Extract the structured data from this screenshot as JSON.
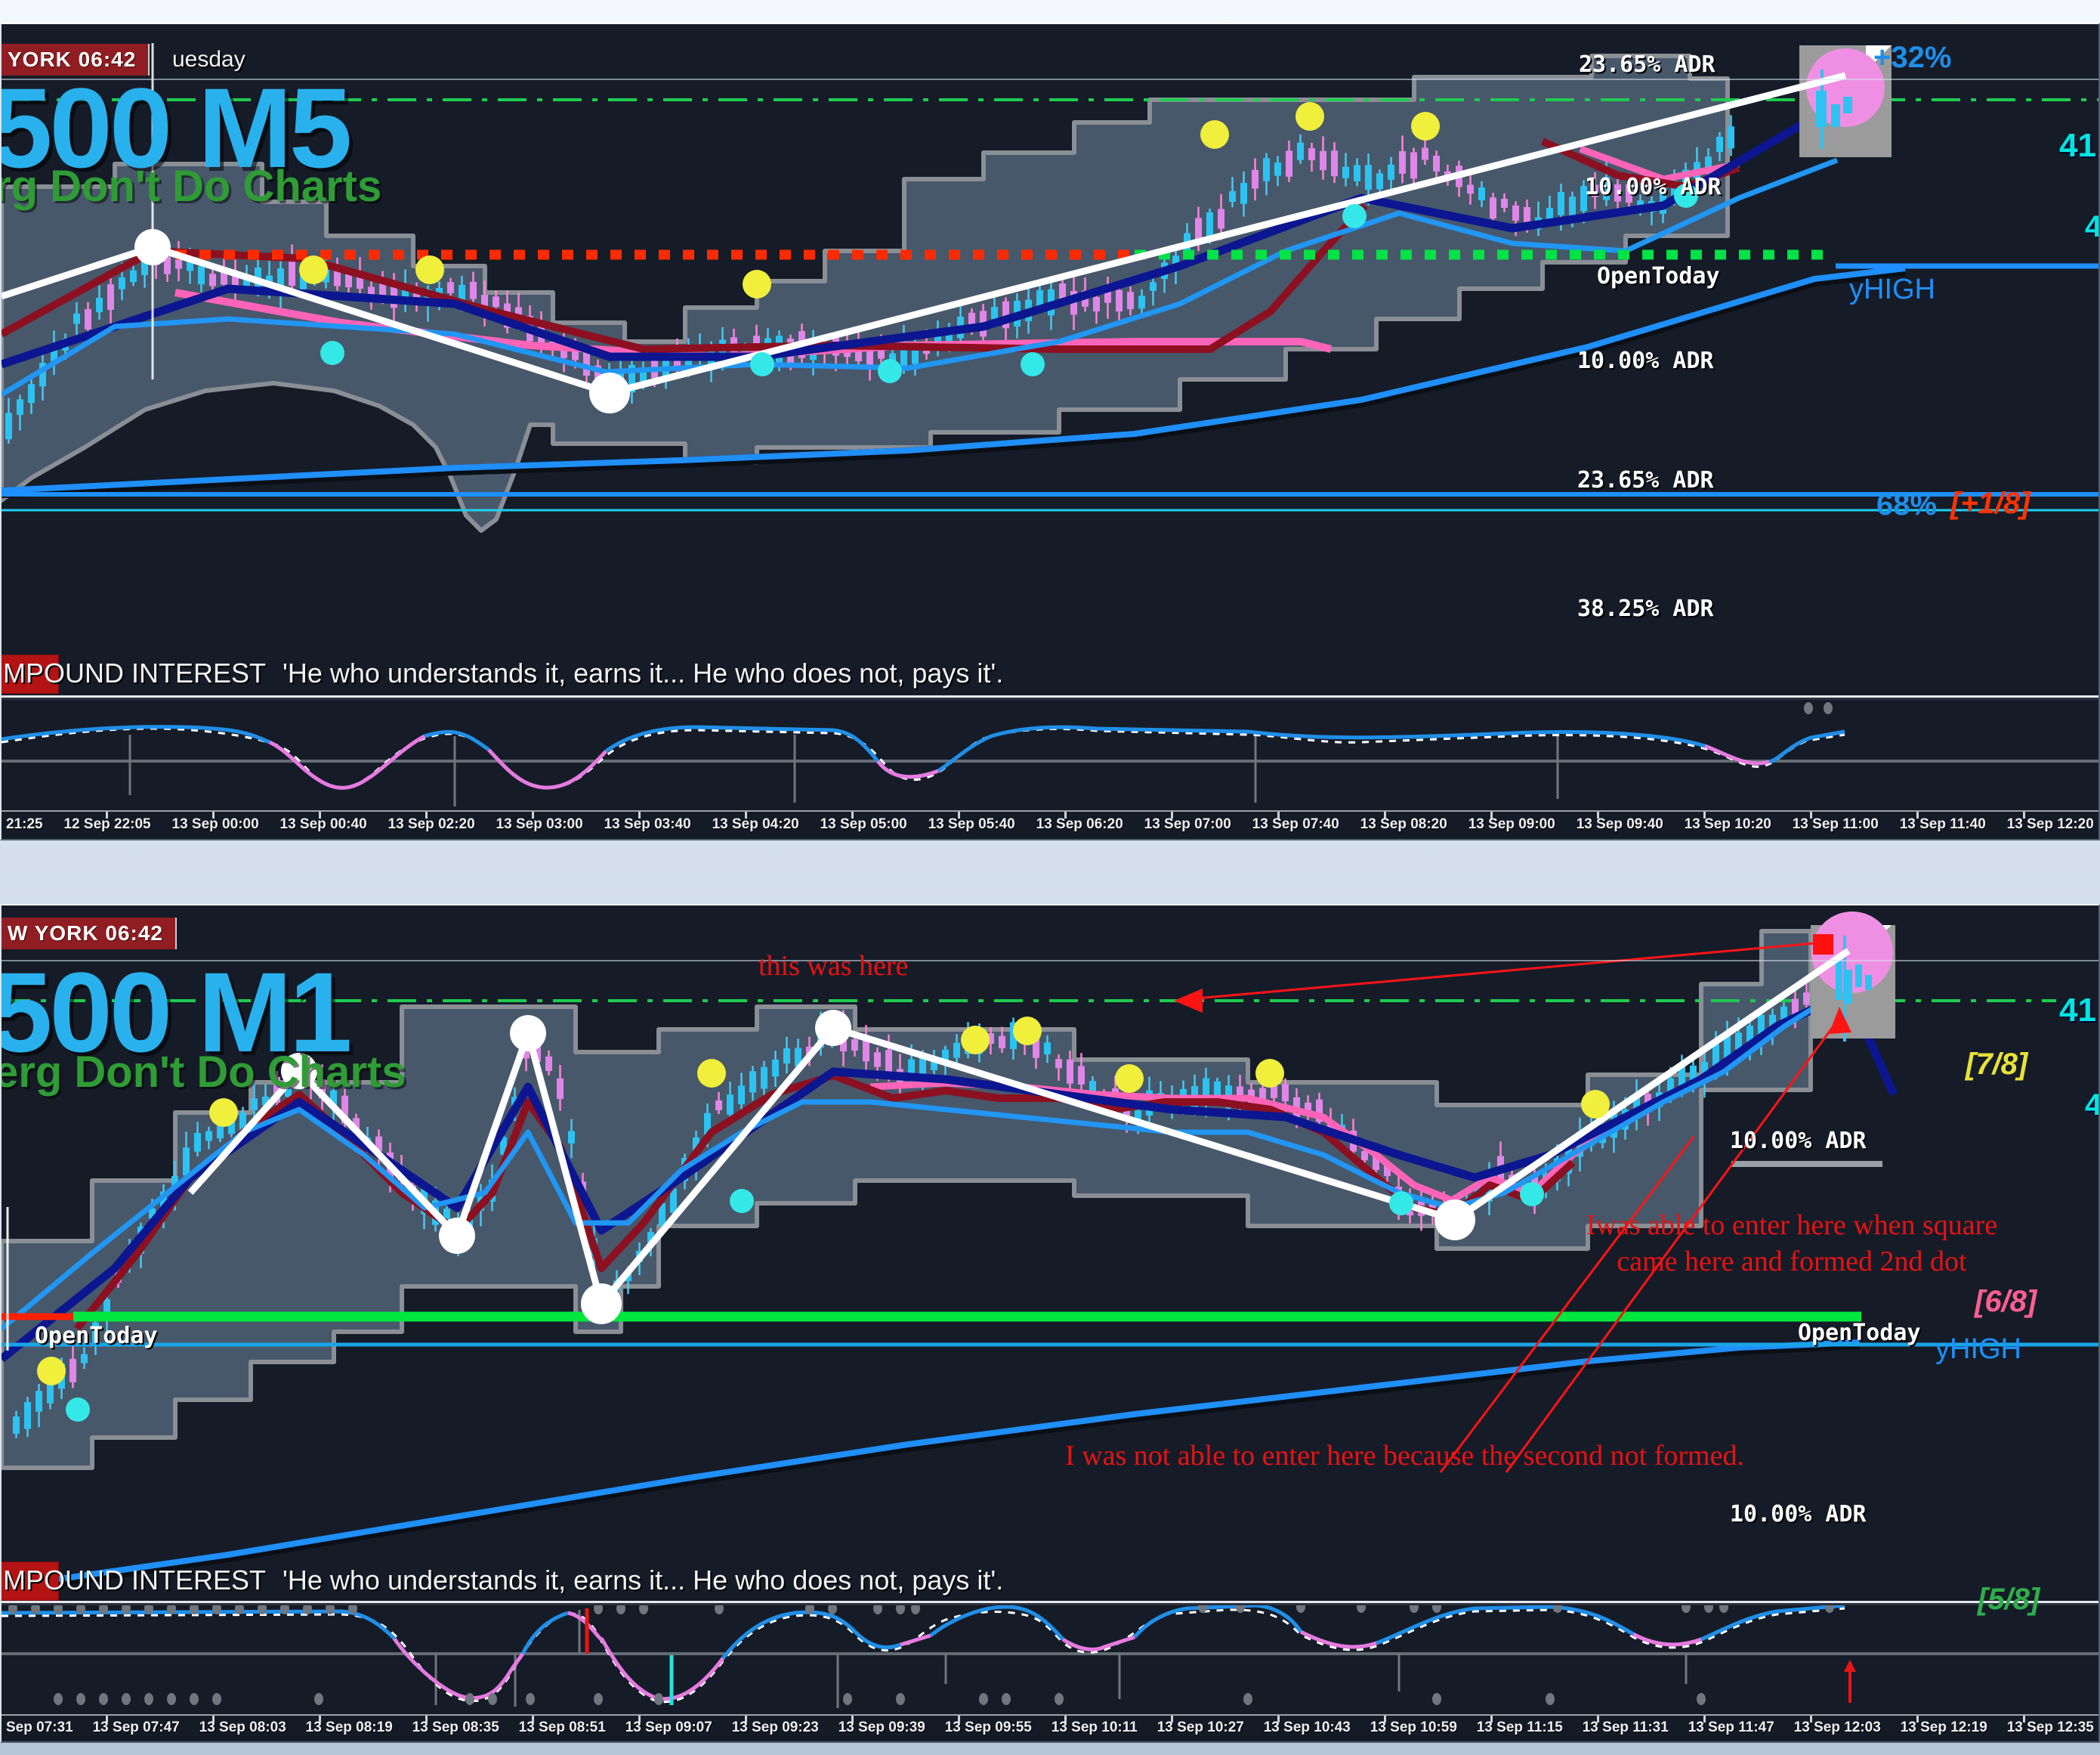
{
  "meta": {
    "app": "MetaTrader-style dual chart workspace",
    "colors": {
      "panel_bg": "#151c28",
      "channel_fill": "#47586b",
      "channel_stroke": "#8a8f95",
      "bull_candle": "#2cc3f2",
      "bear_candle": "#df86e8",
      "accent_blue": "#1e90ff",
      "price_cyan": "#00e5e0",
      "green_dashdot": "#1ecb4f",
      "red_dotted": "#ff2b00",
      "green_dotted": "#00e346",
      "annotation_red": "#e81212",
      "dot_yellow": "#f0ef3c",
      "dot_white": "#ffffff",
      "dot_cyan": "#35e8e8",
      "dot_magenta": "#ef8fe3",
      "badge_red": "#8f1d22",
      "symbol_blue": "#29b1ed",
      "watermark_green": "#2f9c35"
    }
  },
  "quote": {
    "prefix": "MPOUND INTEREST",
    "text": "'He who understands it, earns it... He who does not, pays it'."
  },
  "top_chart": {
    "badge": "YORK 06:42",
    "day": "uesday",
    "symbol": "500 M5",
    "watermark": "rg Don't Do Charts",
    "labels": {
      "adr_2365_upper": "23.65% ADR",
      "plus32": "+32%",
      "price_main": "41",
      "price_sub": "4",
      "adr_10_upper": "10.00% ADR",
      "open_today": "OpenToday",
      "yhigh": "yHIGH",
      "adr_10_lower": "10.00% ADR",
      "adr_2365_lower": "23.65% ADR",
      "pct68": "68%",
      "plus_eighth": "[+1/8]",
      "adr_3825": "38.25% ADR"
    },
    "time_axis": [
      "21:25",
      "12 Sep 22:05",
      "13 Sep 00:00",
      "13 Sep 00:40",
      "13 Sep 02:20",
      "13 Sep 03:00",
      "13 Sep 03:40",
      "13 Sep 04:20",
      "13 Sep 05:00",
      "13 Sep 05:40",
      "13 Sep 06:20",
      "13 Sep 07:00",
      "13 Sep 07:40",
      "13 Sep 08:20",
      "13 Sep 09:00",
      "13 Sep 09:40",
      "13 Sep 10:20",
      "13 Sep 11:00",
      "13 Sep 11:40",
      "13 Sep 12:20"
    ]
  },
  "bottom_chart": {
    "badge": "W YORK 06:42",
    "symbol": "500 M1",
    "watermark": "erg Don't Do Charts",
    "labels": {
      "price_main": "41",
      "price_sub": "4",
      "seventh": "[7/8]",
      "adr_10_upper": "10.00% ADR",
      "sixth": "[6/8]",
      "open_today_left": "OpenToday",
      "open_today_right": "OpenToday",
      "yhigh": "yHIGH",
      "adr_10_lower": "10.00% ADR",
      "fifth": "[5/8]"
    },
    "annotations": {
      "this_was_here": "this was here",
      "entered_line1": "Iwas able to enter here when square",
      "entered_line2": "came here and formed 2nd dot",
      "not_entered": "I was not able to enter here because the second not formed."
    },
    "time_axis": [
      "Sep 07:31",
      "13 Sep 07:47",
      "13 Sep 08:03",
      "13 Sep 08:19",
      "13 Sep 08:35",
      "13 Sep 08:51",
      "13 Sep 09:07",
      "13 Sep 09:23",
      "13 Sep 09:39",
      "13 Sep 09:55",
      "13 Sep 10:11",
      "13 Sep 10:27",
      "13 Sep 10:43",
      "13 Sep 10:59",
      "13 Sep 11:15",
      "13 Sep 11:31",
      "13 Sep 11:47",
      "13 Sep 12:03",
      "13 Sep 12:19",
      "13 Sep 12:35"
    ]
  },
  "chart_data": [
    {
      "type": "candlestick",
      "title": "500 M5",
      "timeframe": "M5",
      "session_clock": "YORK 06:42 uesday",
      "x_range": [
        "12 Sep 21:25",
        "13 Sep 12:20"
      ],
      "x_tick_labels": [
        "21:25",
        "12 Sep 22:05",
        "13 Sep 00:00",
        "13 Sep 00:40",
        "13 Sep 02:20",
        "13 Sep 03:00",
        "13 Sep 03:40",
        "13 Sep 04:20",
        "13 Sep 05:00",
        "13 Sep 05:40",
        "13 Sep 06:20",
        "13 Sep 07:00",
        "13 Sep 07:40",
        "13 Sep 08:20",
        "13 Sep 09:00",
        "13 Sep 09:40",
        "13 Sep 10:20",
        "13 Sep 11:00",
        "13 Sep 11:40",
        "13 Sep 12:20"
      ],
      "visible_price_axis_labels": [
        "41",
        "4"
      ],
      "levels": [
        {
          "label": "23.65% ADR",
          "zone": "above price, top of pane"
        },
        {
          "label": "10.00% ADR",
          "zone": "upper"
        },
        {
          "label": "OpenToday",
          "style": "dotted horizontal, red left segment then green",
          "note": "ends where blue yHIGH line begins"
        },
        {
          "label": "yHIGH",
          "style": "solid blue horizontal at right"
        },
        {
          "label": "10.00% ADR",
          "zone": "mid"
        },
        {
          "label": "23.65% ADR",
          "zone": "lower"
        },
        {
          "label": "68% [+1/8]",
          "style": "blue + cyan horizontal pair near pane bottom"
        },
        {
          "label": "38.25% ADR",
          "zone": "bottom"
        }
      ],
      "overlays": [
        "grey stepped channel band",
        "dark-blue MA",
        "dark-red MA",
        "pink MA",
        "fast blue MA",
        "slow blue MA with black outline",
        "white zigzag trend line",
        "green dash-dot top level"
      ],
      "markers": {
        "white_swing_dots": 2,
        "yellow_dots": 6,
        "cyan_dots": 6,
        "magenta_top_dot": 1,
        "gain_label": "+32%"
      },
      "lower_pane": "oscillator with blue line, white dashed companion, magenta below-midline segments, grey spikes"
    },
    {
      "type": "candlestick",
      "title": "500 M1",
      "timeframe": "M1",
      "session_clock": "W YORK 06:42",
      "x_range": [
        "13 Sep 07:31",
        "13 Sep 12:35"
      ],
      "x_tick_labels": [
        "Sep 07:31",
        "13 Sep 07:47",
        "13 Sep 08:03",
        "13 Sep 08:19",
        "13 Sep 08:35",
        "13 Sep 08:51",
        "13 Sep 09:07",
        "13 Sep 09:23",
        "13 Sep 09:39",
        "13 Sep 09:55",
        "13 Sep 10:11",
        "13 Sep 10:27",
        "13 Sep 10:43",
        "13 Sep 10:59",
        "13 Sep 11:15",
        "13 Sep 11:31",
        "13 Sep 11:47",
        "13 Sep 12:03",
        "13 Sep 12:19",
        "13 Sep 12:35"
      ],
      "visible_price_axis_labels": [
        "41",
        "4"
      ],
      "levels": [
        {
          "label": "[7/8]",
          "color": "yellow"
        },
        {
          "label": "10.00% ADR",
          "zone": "upper right"
        },
        {
          "label": "OpenToday",
          "style": "thick green horizontal with short red left segment, labels at both ends"
        },
        {
          "label": "[6/8]",
          "color": "pink"
        },
        {
          "label": "yHIGH",
          "style": "solid blue horizontal full width"
        },
        {
          "label": "10.00% ADR",
          "zone": "lower right"
        },
        {
          "label": "[5/8]",
          "color": "green"
        }
      ],
      "annotations": [
        {
          "text": "this was here",
          "style": "red serif, arrow pointing left to green dash-dot level from red square"
        },
        {
          "text": "Iwas able to enter here when square came here and formed 2nd dot",
          "style": "red serif, two centered lines, right side"
        },
        {
          "text": "I was not able to enter here because the second not formed.",
          "style": "red serif, bottom, with two red lines up to entry zone and arrow to last candle"
        }
      ],
      "overlays": [
        "grey stepped channel band",
        "dark-blue MA",
        "dark-red MA",
        "pink MA",
        "fast blue MA",
        "slow blue MA with black outline",
        "white zigzag with white pivot dots",
        "green dash-dot top level",
        "grey box with magenta dot and red square at last candle"
      ],
      "markers": {
        "white_swing_dots": 6,
        "yellow_dots": 8,
        "cyan_dots": 4,
        "magenta_top_dot": 1,
        "red_square": 1
      },
      "lower_pane": "oscillator with blue line, white dashed companion, magenta valleys, red and cyan vertical bars, grey spikes and dot rows, red up arrow at right"
    }
  ]
}
